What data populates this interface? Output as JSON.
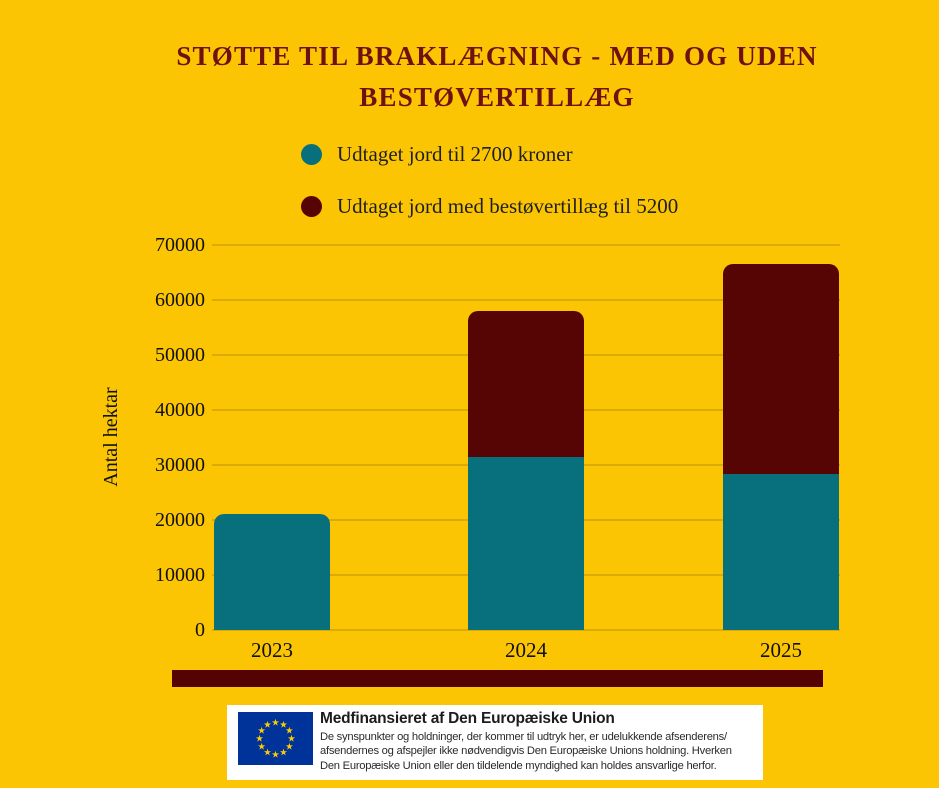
{
  "title": {
    "line1": "STØTTE TIL BRAKLÆGNING - MED OG UDEN",
    "line2": "BESTØVERTILLÆG"
  },
  "chart_data": {
    "type": "bar",
    "stacked": true,
    "title": "Støtte til braklægning - med og uden bestøvertillæg",
    "categories": [
      "2023",
      "2024",
      "2025"
    ],
    "series": [
      {
        "name": "Udtaget jord til 2700 kroner",
        "color": "#08707C",
        "values": [
          21100,
          31500,
          28300
        ]
      },
      {
        "name": "Udtaget jord med bestøvertillæg til 5200",
        "color": "#560404",
        "values": [
          0,
          26500,
          38100
        ]
      }
    ],
    "stack_totals": [
      21100,
      58000,
      66400
    ],
    "xlabel": "",
    "ylabel": "Antal hektar",
    "ylim": [
      0,
      70000
    ],
    "ytick_step": 10000,
    "yticks": [
      0,
      10000,
      20000,
      30000,
      40000,
      50000,
      60000,
      70000
    ],
    "grid": true,
    "legend_position": "top"
  },
  "eu_attribution": {
    "title": "Medfinansieret af Den Europæiske Union",
    "body_lines": [
      "De synspunkter og holdninger, der kommer til udtryk her, er udelukkende afsenderens/",
      "afsendernes og afspejler ikke nødvendigvis Den Europæiske Unions holdning. Hverken",
      "Den Europæiske Union eller den tildelende myndighed kan holdes ansvarlige herfor."
    ],
    "flag_colors": {
      "blue": "#003399",
      "star": "#FFCC00"
    }
  },
  "colors": {
    "background": "#FBC503",
    "title_text": "#6F1113",
    "divider": "#540202",
    "text": "#111111",
    "gridline": "rgba(0,0,0,0.13)",
    "eu_box_bg": "#FFFFFF"
  }
}
